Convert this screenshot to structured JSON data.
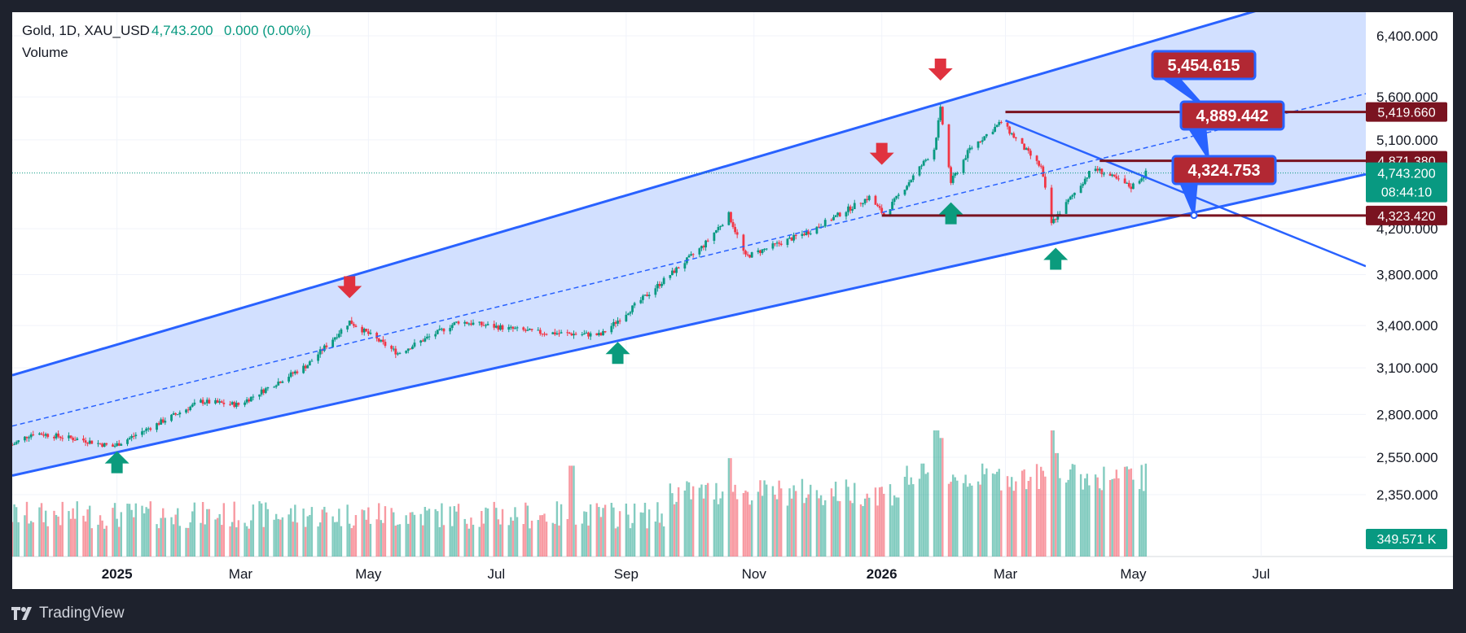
{
  "legend": {
    "symbol": "Gold, 1D, XAU_USD",
    "last": "4,743.200",
    "change": "0.000 (0.00%)",
    "volume_label": "Volume"
  },
  "brand": "TradingView",
  "colors": {
    "up": "#089981",
    "down": "#f23645",
    "channel": "#2962ff",
    "channel_fill": "#d0deff",
    "level": "#7a1320",
    "callout": "#b22833"
  },
  "chart_data": {
    "type": "candlestick",
    "title": "Gold, 1D, XAU_USD",
    "y_scale": "log",
    "y_ticks": [
      "6,400.000",
      "5,600.000",
      "5,100.000",
      "4,200.000",
      "3,800.000",
      "3,400.000",
      "3,100.000",
      "2,800.000",
      "2,550.000",
      "2,350.000"
    ],
    "y_tick_values": [
      6400,
      5600,
      5100,
      4200,
      3800,
      3400,
      3100,
      2800,
      2550,
      2350
    ],
    "x_ticks": [
      {
        "label": "2025",
        "bold": true,
        "date": "2025-01-01"
      },
      {
        "label": "Mar",
        "bold": false,
        "date": "2025-03-01"
      },
      {
        "label": "May",
        "bold": false,
        "date": "2025-05-01"
      },
      {
        "label": "Jul",
        "bold": false,
        "date": "2025-07-01"
      },
      {
        "label": "Sep",
        "bold": false,
        "date": "2025-09-01"
      },
      {
        "label": "Nov",
        "bold": false,
        "date": "2025-11-01"
      },
      {
        "label": "2026",
        "bold": true,
        "date": "2026-01-01"
      },
      {
        "label": "Mar",
        "bold": false,
        "date": "2026-03-01"
      },
      {
        "label": "May",
        "bold": false,
        "date": "2026-05-01"
      },
      {
        "label": "Jul",
        "bold": false,
        "date": "2026-07-01"
      }
    ],
    "x_range": [
      "2024-11-12",
      "2026-08-20"
    ],
    "last_bar_date": "2026-05-07",
    "price_path": [
      {
        "date": "2024-11-12",
        "close": 2620
      },
      {
        "date": "2024-11-22",
        "close": 2690
      },
      {
        "date": "2024-12-15",
        "close": 2650
      },
      {
        "date": "2024-12-30",
        "close": 2610
      },
      {
        "date": "2025-02-10",
        "close": 2880
      },
      {
        "date": "2025-02-28",
        "close": 2860
      },
      {
        "date": "2025-04-02",
        "close": 3120
      },
      {
        "date": "2025-04-22",
        "close": 3430
      },
      {
        "date": "2025-05-15",
        "close": 3200
      },
      {
        "date": "2025-06-13",
        "close": 3430
      },
      {
        "date": "2025-07-20",
        "close": 3350
      },
      {
        "date": "2025-08-20",
        "close": 3330
      },
      {
        "date": "2025-10-08",
        "close": 4050
      },
      {
        "date": "2025-10-20",
        "close": 4330
      },
      {
        "date": "2025-10-28",
        "close": 3950
      },
      {
        "date": "2025-11-28",
        "close": 4180
      },
      {
        "date": "2025-12-26",
        "close": 4500
      },
      {
        "date": "2026-01-02",
        "close": 4330
      },
      {
        "date": "2026-01-26",
        "close": 5000
      },
      {
        "date": "2026-01-29",
        "close": 5450
      },
      {
        "date": "2026-02-03",
        "close": 4650
      },
      {
        "date": "2026-02-12",
        "close": 5000
      },
      {
        "date": "2026-02-27",
        "close": 5300
      },
      {
        "date": "2026-03-18",
        "close": 4800
      },
      {
        "date": "2026-03-23",
        "close": 4250
      },
      {
        "date": "2026-04-12",
        "close": 4800
      },
      {
        "date": "2026-04-30",
        "close": 4600
      },
      {
        "date": "2026-05-07",
        "close": 4743.2
      }
    ],
    "channel": {
      "upper": [
        {
          "date": "2024-11-12",
          "price": 3050
        },
        {
          "date": "2026-08-20",
          "price": 7250
        }
      ],
      "lower": [
        {
          "date": "2024-11-12",
          "price": 2450
        },
        {
          "date": "2026-08-20",
          "price": 4730
        }
      ],
      "mid": [
        {
          "date": "2024-11-12",
          "price": 2730
        },
        {
          "date": "2026-08-20",
          "price": 5640
        }
      ]
    },
    "trendline": [
      {
        "date": "2026-03-01",
        "price": 5320
      },
      {
        "date": "2026-08-20",
        "price": 3870
      }
    ],
    "levels": [
      {
        "price": 5419.66,
        "label": "5,419.660",
        "from": "2026-03-01"
      },
      {
        "price": 4871.38,
        "label": "4,871.380",
        "from": "2026-04-15"
      },
      {
        "price": 4323.42,
        "label": "4,323.420",
        "from": "2026-01-01"
      }
    ],
    "price_tags": [
      {
        "price": 4743.2,
        "label": "4,743.200",
        "countdown": "08:44:10"
      }
    ],
    "callouts": [
      {
        "label": "5,454.615",
        "anchor_date": "2026-06-05",
        "anchor_price": 5454.615
      },
      {
        "label": "4,889.442",
        "anchor_date": "2026-06-06",
        "anchor_price": 4889.442
      },
      {
        "label": "4,324.753",
        "anchor_date": "2026-05-30",
        "anchor_price": 4324.753
      }
    ],
    "arrows_down": [
      {
        "date": "2025-04-22",
        "price": 3700
      },
      {
        "date": "2026-01-01",
        "price": 4950
      },
      {
        "date": "2026-01-29",
        "price": 5950
      }
    ],
    "arrows_up": [
      {
        "date": "2025-01-01",
        "price": 2520
      },
      {
        "date": "2025-08-28",
        "price": 3200
      },
      {
        "date": "2026-02-03",
        "price": 4340
      },
      {
        "date": "2026-03-25",
        "price": 3930
      }
    ],
    "volume": {
      "label": "349.571 K",
      "spikes": [
        {
          "date": "2025-08-06",
          "rel": 0.72
        },
        {
          "date": "2025-10-20",
          "rel": 0.78
        },
        {
          "date": "2026-01-27",
          "rel": 1.0
        },
        {
          "date": "2026-01-29",
          "rel": 0.94
        },
        {
          "date": "2026-03-23",
          "rel": 1.0
        },
        {
          "date": "2026-03-25",
          "rel": 0.82
        }
      ]
    }
  }
}
